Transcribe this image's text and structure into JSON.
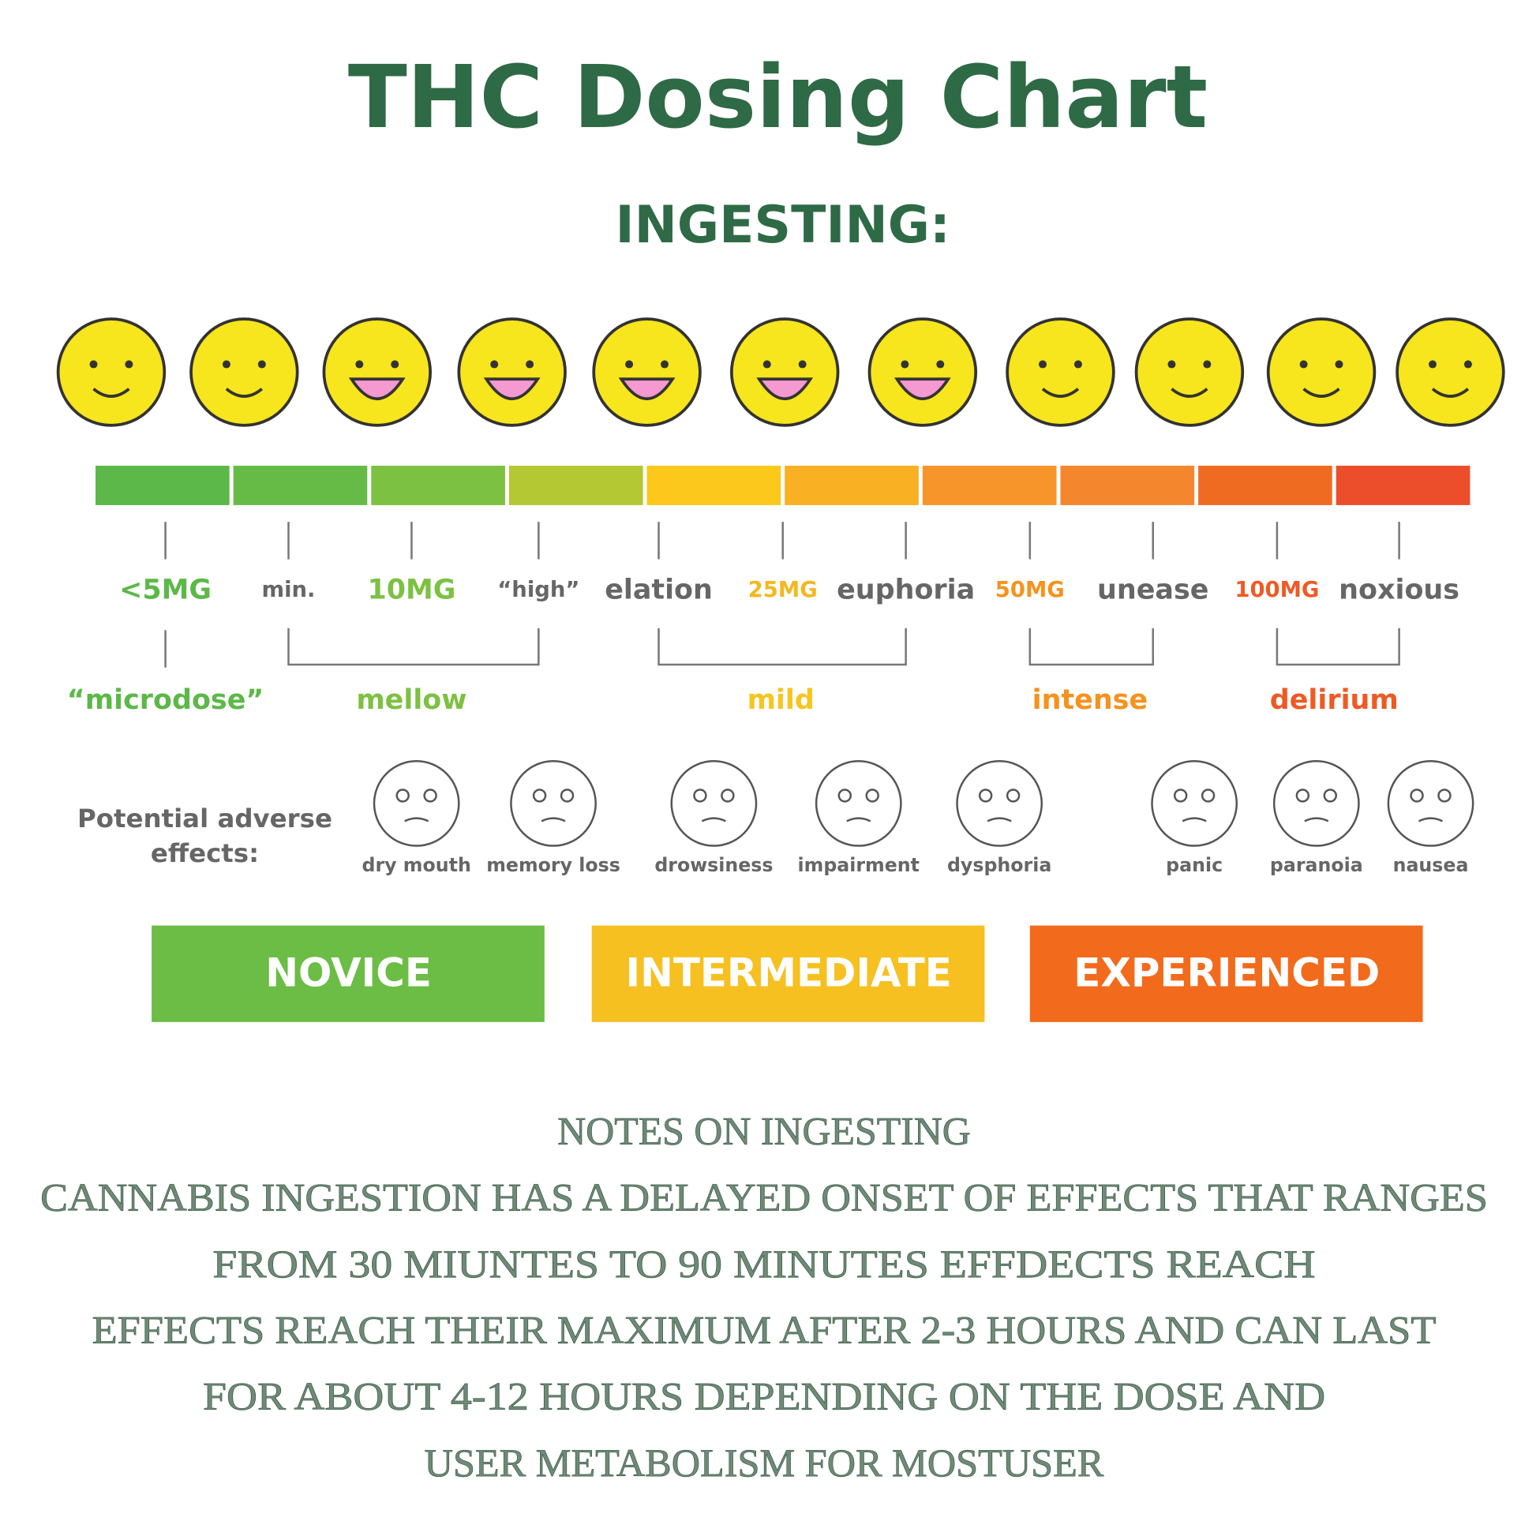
{
  "header": {
    "title": "THC Dosing Chart",
    "subtitle": "INGESTING:"
  },
  "scale": {
    "labels": [
      "<5MG",
      "min.",
      "10MG",
      "“high”",
      "elation",
      "25MG",
      "euphoria",
      "50MG",
      "unease",
      "100MG",
      "noxious"
    ]
  },
  "ranges": [
    "“microdose”",
    "mellow",
    "mild",
    "intense",
    "delirium"
  ],
  "adverse": {
    "label": [
      "Potential adverse",
      "effects:"
    ],
    "effects": [
      "dry mouth",
      "memory loss",
      "drowsiness",
      "impairment",
      "dysphoria",
      "panic",
      "paranoia",
      "nausea"
    ]
  },
  "levels": [
    "NOVICE",
    "INTERMEDIATE",
    "EXPERIENCED"
  ],
  "notes": {
    "title": "NOTES ON INGESTING",
    "lines": [
      "CANNABIS INGESTION HAS A DELAYED ONSET OF EFFECTS THAT RANGES",
      "FROM 30 MIUNTES TO 90 MINUTES EFFDECTS REACH",
      "EFFECTS REACH THEIR MAXIMUM AFTER 2-3 HOURS AND CAN LAST",
      "FOR ABOUT 4-12 HOURS DEPENDING ON THE DOSE AND",
      "USER METABOLISM FOR MOSTUSER"
    ]
  }
}
